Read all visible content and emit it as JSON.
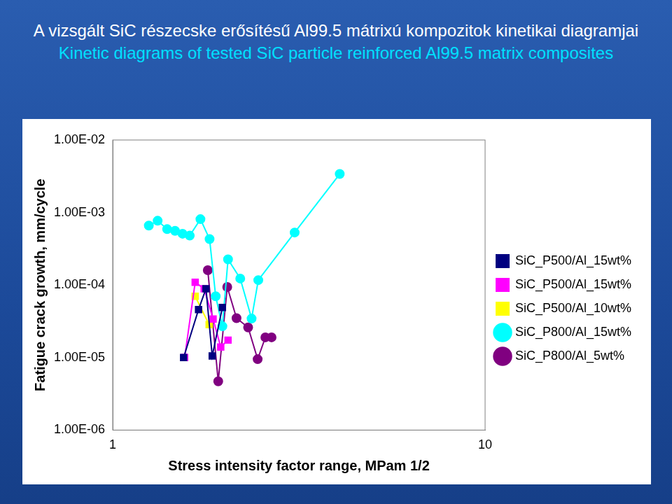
{
  "chart_data": {
    "type": "scatter",
    "title": "A vizsgált SiC részecske erősítésű Al99.5 mátrixú kompozitok kinetikai diagramjai",
    "subtitle": "Kinetic diagrams of tested SiC particle reinforced Al99.5 matrix composites",
    "x_label": "Stress intensity factor range, MPam 1/2",
    "y_label": "Fatigue crack growth, mm/cycle",
    "log": true,
    "grid": false,
    "legend": "right",
    "xlim": [
      1,
      10
    ],
    "xticks": [
      1,
      10
    ],
    "ylim": [
      1e-06,
      0.01
    ],
    "yticks": [
      {
        "value": 1e-06,
        "label": "1.00E-06"
      },
      {
        "value": 1e-05,
        "label": "1.00E-05"
      },
      {
        "value": 0.0001,
        "label": "1.00E-04"
      },
      {
        "value": 0.001,
        "label": "1.00E-03"
      },
      {
        "value": 0.01,
        "label": "1.00E-02"
      }
    ],
    "series": [
      {
        "name": "SiC_P500/Al_15wt%",
        "color": "#000080",
        "marker": "square",
        "line_style": "solid",
        "x": [
          1.55,
          1.7,
          1.78,
          1.85,
          1.97
        ],
        "values": [
          1e-05,
          4.6e-05,
          8.9e-05,
          1.05e-05,
          4.9e-05
        ]
      },
      {
        "name": "SiC_P500/Al_15wt%",
        "color": "#ff00ff",
        "marker": "square",
        "line_style": "solid",
        "x": [
          1.56,
          1.665,
          1.76,
          1.86,
          1.95,
          2.04
        ],
        "values": [
          1e-05,
          0.000109,
          8.9e-05,
          3.4e-05,
          1.4e-05,
          1.74e-05
        ]
      },
      {
        "name": "SiC_P500/Al_10wt%",
        "color": "#ffff00",
        "marker": "square",
        "line_style": "solid",
        "x": [
          1.665,
          1.815
        ],
        "values": [
          7e-05,
          2.84e-05
        ]
      },
      {
        "name": "SiC_P800/Al_15wt%",
        "color": "#00ffff",
        "marker": "circle",
        "line_style": "solid",
        "x": [
          1.25,
          1.32,
          1.4,
          1.47,
          1.54,
          1.61,
          1.72,
          1.82,
          1.89,
          1.97,
          2.04,
          2.2,
          2.36,
          2.46,
          3.08,
          4.07
        ],
        "values": [
          0.00066,
          0.00077,
          0.00059,
          0.00056,
          0.00051,
          0.00048,
          0.00081,
          0.00043,
          7e-05,
          2.7e-05,
          0.000226,
          0.000123,
          3.45e-05,
          0.000117,
          0.00053,
          0.0034
        ]
      },
      {
        "name": "SiC_P800/Al_5wt%",
        "color": "#800080",
        "marker": "circle",
        "line_style": "solid",
        "x": [
          1.8,
          1.92,
          2.03,
          2.15,
          2.31,
          2.45,
          2.57,
          2.67
        ],
        "values": [
          0.00016,
          4.7e-06,
          9.4e-05,
          3.5e-05,
          2.6e-05,
          9.5e-06,
          1.9e-05,
          1.9e-05
        ]
      }
    ]
  }
}
